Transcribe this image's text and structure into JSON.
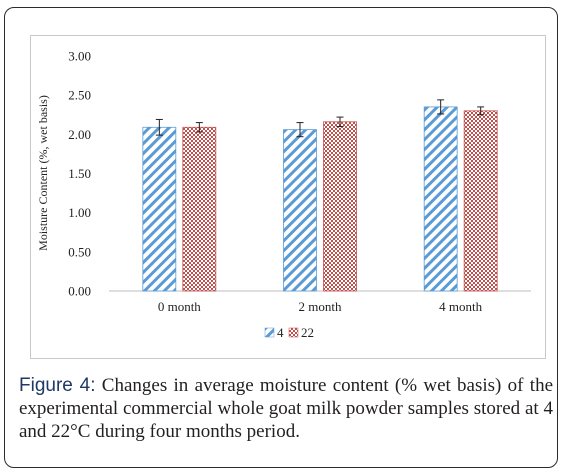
{
  "chart_data": {
    "type": "bar",
    "categories": [
      "0 month",
      "2 month",
      "4 month"
    ],
    "series": [
      {
        "name": "4",
        "values": [
          2.09,
          2.06,
          2.35
        ],
        "errors": [
          0.1,
          0.09,
          0.09
        ],
        "color": "#5b9bd5",
        "pattern": "diagonal-stripes"
      },
      {
        "name": "22",
        "values": [
          2.09,
          2.16,
          2.3
        ],
        "errors": [
          0.06,
          0.06,
          0.05
        ],
        "color": "#c0504d",
        "pattern": "checkered"
      }
    ],
    "yticks": [
      "0.00",
      "0.50",
      "1.00",
      "1.50",
      "2.00",
      "2.50",
      "3.00"
    ],
    "ylim": [
      0,
      3
    ],
    "ylabel": "Moisture  Content  (%, wet basis)",
    "xlabel": "",
    "title": "",
    "legend_position": "bottom",
    "grid": false
  },
  "caption": {
    "label": "Figure 4:",
    "text": " Changes in average moisture content (% wet basis) of the experimental commercial whole goat milk powder samples stored at 4 and 22°C during four months period."
  }
}
